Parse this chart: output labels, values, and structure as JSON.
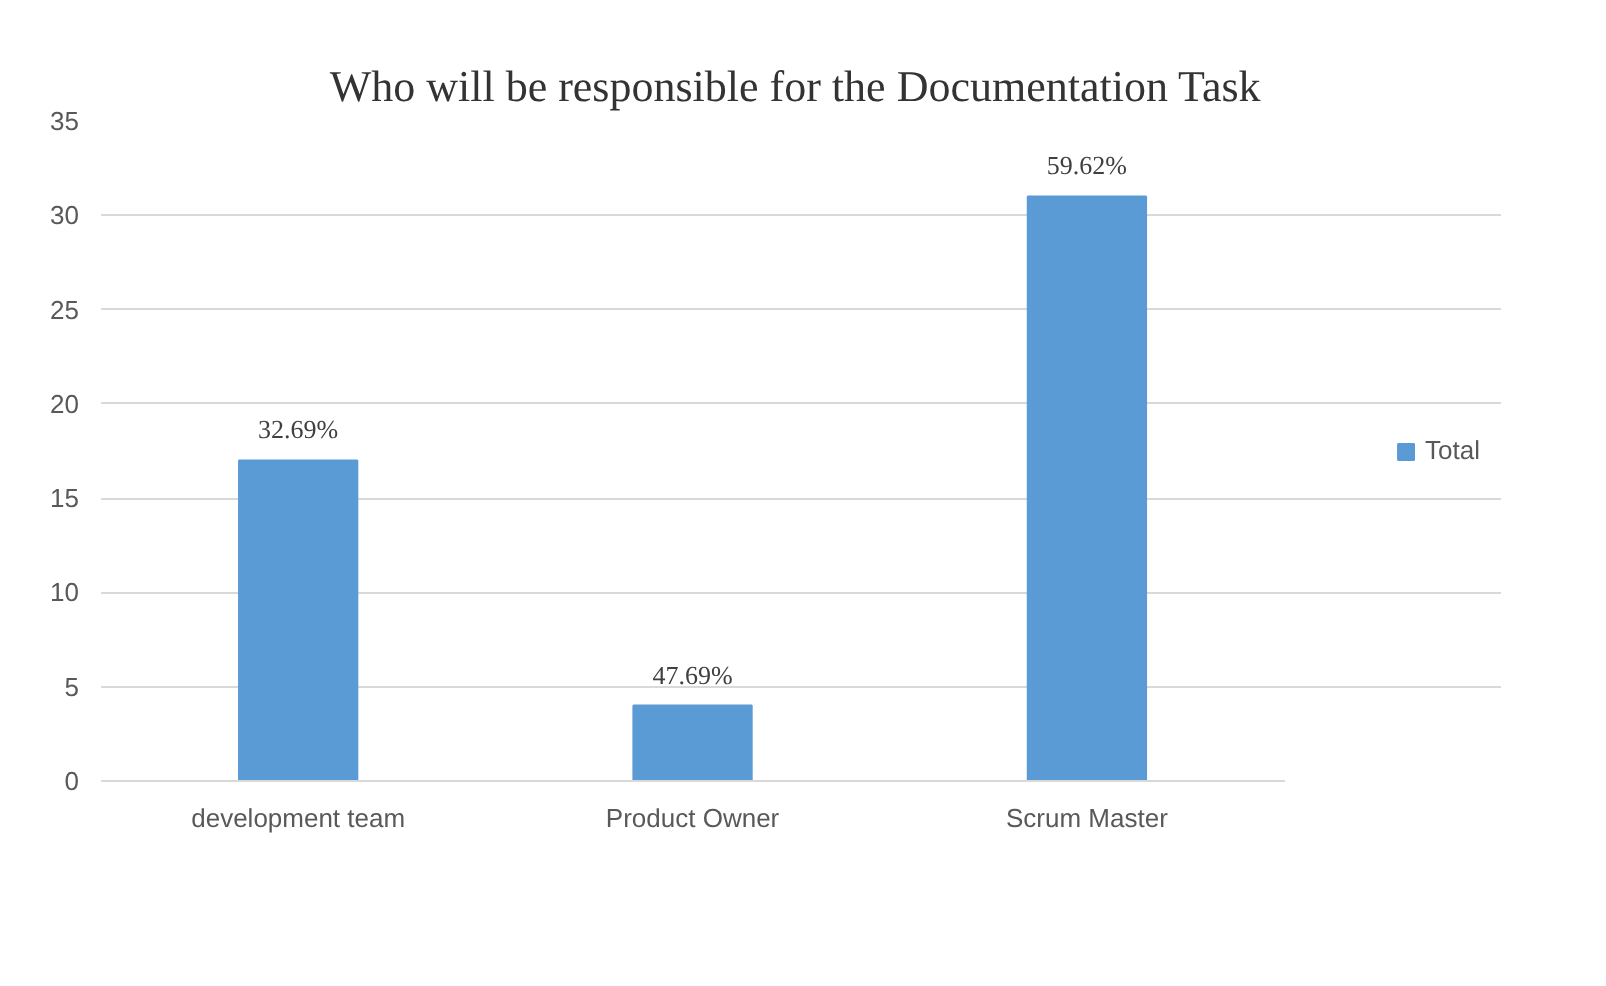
{
  "chart_data": {
    "type": "bar",
    "title": "Who will be responsible  for the Documentation Task",
    "categories": [
      "development team",
      "Product Owner",
      "Scrum Master"
    ],
    "series": [
      {
        "name": "Total",
        "color": "#5b9bd5",
        "values": [
          17,
          4,
          31
        ]
      }
    ],
    "value_labels": [
      "32.69%",
      "47.69%",
      "59.62%"
    ],
    "ylim": [
      0,
      35
    ],
    "yticks": [
      0,
      5,
      10,
      15,
      20,
      25,
      30,
      35
    ],
    "grid": "y",
    "legend": "right"
  }
}
